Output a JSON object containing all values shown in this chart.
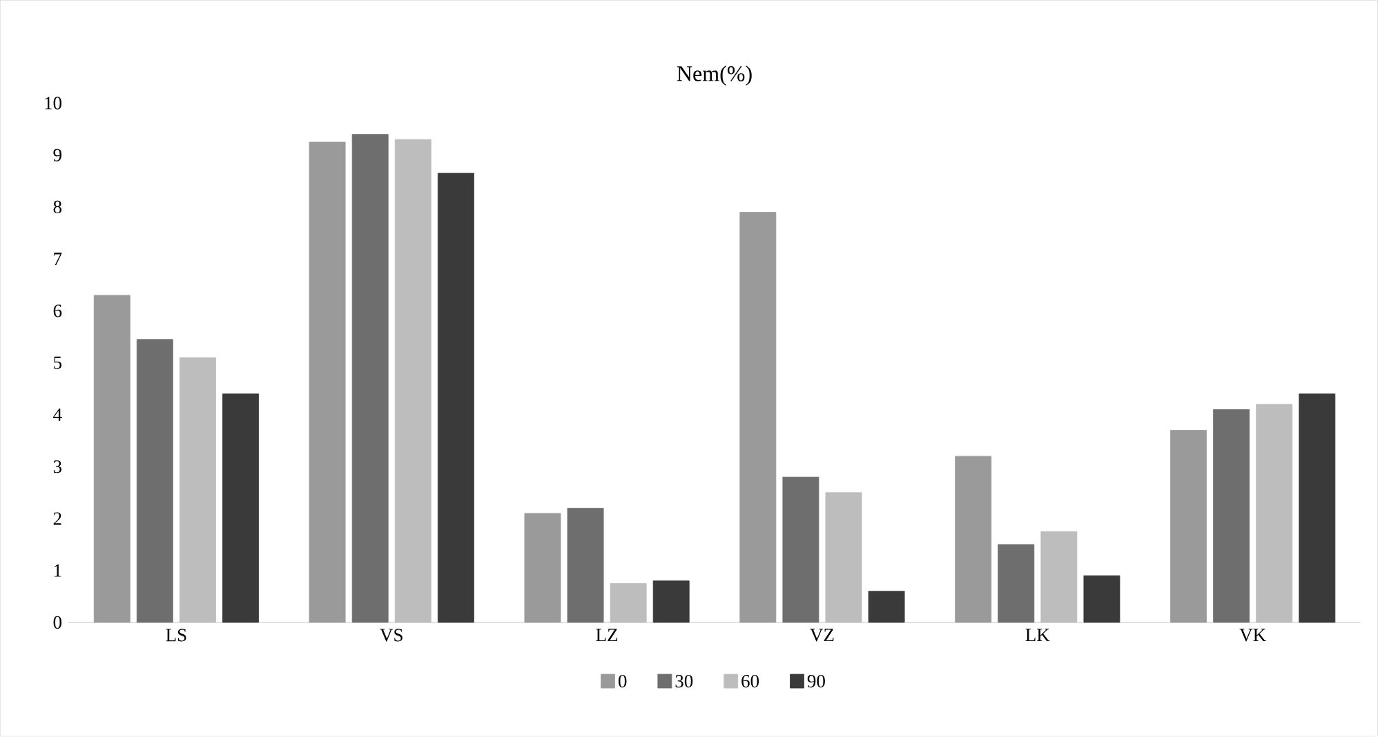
{
  "chart_data": {
    "type": "bar",
    "title": "Nem(%)",
    "categories": [
      "LS",
      "VS",
      "LZ",
      "VZ",
      "LK",
      "VK"
    ],
    "series": [
      {
        "name": "0",
        "color": "#9a9a9a",
        "values": [
          6.3,
          9.25,
          2.1,
          7.9,
          3.2,
          3.7
        ]
      },
      {
        "name": "30",
        "color": "#6e6e6e",
        "values": [
          5.45,
          9.4,
          2.2,
          2.8,
          1.5,
          4.1
        ]
      },
      {
        "name": "60",
        "color": "#bdbdbd",
        "values": [
          5.1,
          9.3,
          0.75,
          2.5,
          1.75,
          4.2
        ]
      },
      {
        "name": "90",
        "color": "#3a3a3a",
        "values": [
          4.4,
          8.65,
          0.8,
          0.6,
          0.9,
          4.4
        ]
      }
    ],
    "ylim": [
      0,
      10
    ],
    "yticks": [
      0,
      1,
      2,
      3,
      4,
      5,
      6,
      7,
      8,
      9,
      10
    ],
    "grid": false,
    "legend": "bottom"
  }
}
